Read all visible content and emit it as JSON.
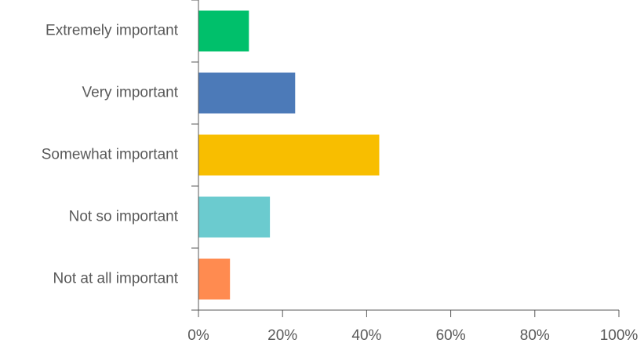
{
  "chart_data": {
    "type": "bar",
    "orientation": "horizontal",
    "title": "",
    "xlabel": "",
    "ylabel": "",
    "categories": [
      "Extremely important",
      "Very important",
      "Somewhat important",
      "Not so important",
      "Not at all important"
    ],
    "values": [
      0.12,
      0.23,
      0.43,
      0.17,
      0.075
    ],
    "colors": [
      "#00c06b",
      "#4c7ab8",
      "#f8be00",
      "#6bcbcf",
      "#ff8b50"
    ],
    "xlim": [
      0,
      1
    ],
    "x_ticks": [
      0,
      0.2,
      0.4,
      0.6,
      0.8,
      1.0
    ],
    "x_tick_labels": [
      "0%",
      "20%",
      "40%",
      "60%",
      "80%",
      "100%"
    ],
    "grid": false,
    "legend": "none"
  }
}
